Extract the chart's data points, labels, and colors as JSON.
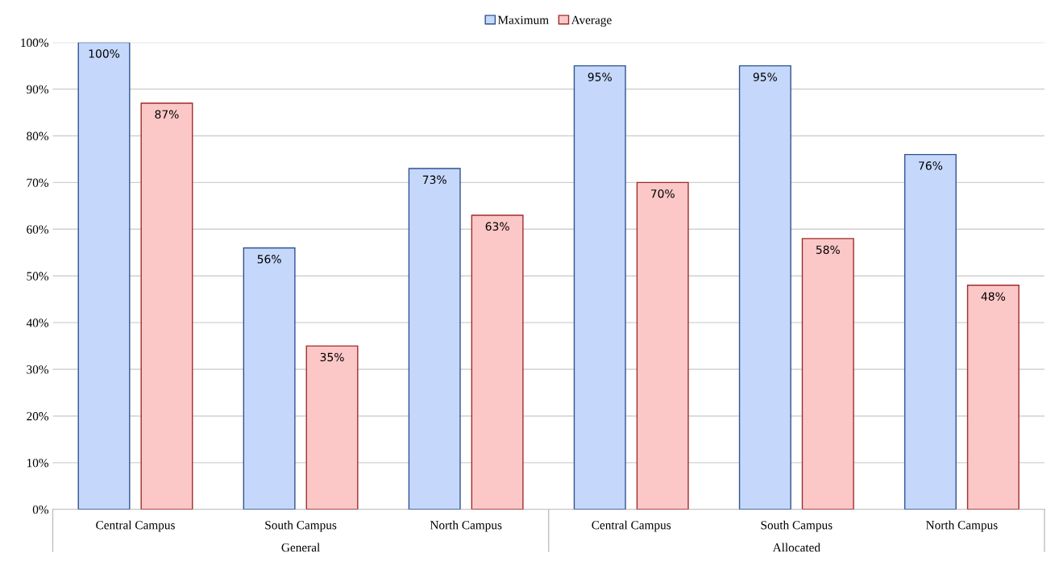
{
  "chart_data": {
    "type": "bar",
    "categories": [
      "Central Campus",
      "South Campus",
      "North Campus",
      "Central Campus",
      "South Campus",
      "North Campus"
    ],
    "series": [
      {
        "name": "Maximum",
        "color": "#c5d8fb",
        "values": [
          100,
          56,
          73,
          95,
          95,
          76
        ],
        "value_labels": [
          "100%",
          "56%",
          "73%",
          "95%",
          "95%",
          "76%"
        ]
      },
      {
        "name": "Average",
        "color": "#fcc7c7",
        "values": [
          87,
          35,
          63,
          70,
          58,
          48
        ],
        "value_labels": [
          "87%",
          "35%",
          "63%",
          "70%",
          "58%",
          "48%"
        ]
      }
    ],
    "annotations": [
      "General",
      "Allocated"
    ],
    "ylim": [
      0,
      100
    ],
    "yticks": [
      {
        "value": 0,
        "label": "0%"
      },
      {
        "value": 10,
        "label": "10%"
      },
      {
        "value": 20,
        "label": "20%"
      },
      {
        "value": 30,
        "label": "30%"
      },
      {
        "value": 40,
        "label": "40%"
      },
      {
        "value": 50,
        "label": "50%"
      },
      {
        "value": 60,
        "label": "60%"
      },
      {
        "value": 70,
        "label": "70%"
      },
      {
        "value": 80,
        "label": "80%"
      },
      {
        "value": 90,
        "label": "90%"
      },
      {
        "value": 100,
        "label": "100%"
      }
    ],
    "grid": "y",
    "legend": "top"
  }
}
